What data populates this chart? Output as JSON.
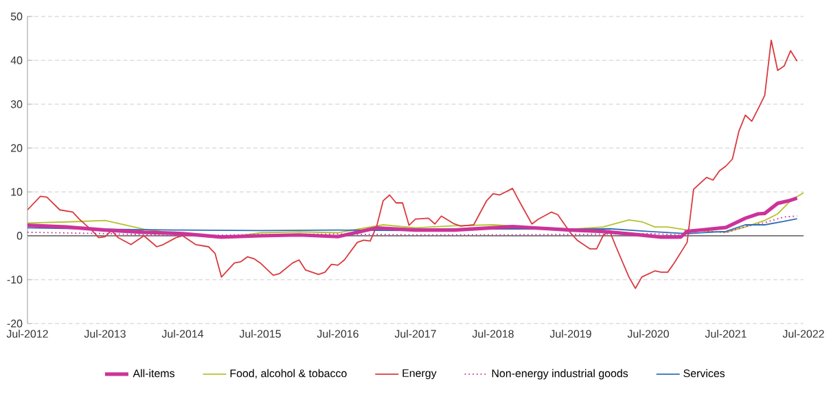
{
  "chart_data": {
    "type": "line",
    "legend": "bottom",
    "grid": "y",
    "xlim": [
      "2012-07",
      "2022-07"
    ],
    "ylim": [
      -20,
      50
    ],
    "yticks": [
      -20,
      -10,
      0,
      10,
      20,
      30,
      40,
      50
    ],
    "xticks": [
      {
        "value": "2012-07",
        "label": "Jul-2012"
      },
      {
        "value": "2013-07",
        "label": "Jul-2013"
      },
      {
        "value": "2014-07",
        "label": "Jul-2014"
      },
      {
        "value": "2015-07",
        "label": "Jul-2015"
      },
      {
        "value": "2016-07",
        "label": "Jul-2016"
      },
      {
        "value": "2017-07",
        "label": "Jul-2017"
      },
      {
        "value": "2018-07",
        "label": "Jul-2018"
      },
      {
        "value": "2019-07",
        "label": "Jul-2019"
      },
      {
        "value": "2020-07",
        "label": "Jul-2020"
      },
      {
        "value": "2021-07",
        "label": "Jul-2021"
      },
      {
        "value": "2022-07",
        "label": "Jul-2022"
      }
    ],
    "series": [
      {
        "name": "All-items",
        "color": "#cc3399",
        "line_style": "solid",
        "x": [
          "2012-07",
          "2013-01",
          "2013-07",
          "2014-01",
          "2014-07",
          "2015-01",
          "2015-07",
          "2016-01",
          "2016-07",
          "2017-01",
          "2017-07",
          "2018-01",
          "2018-10",
          "2019-07",
          "2019-12",
          "2020-05",
          "2020-09",
          "2020-12",
          "2021-01",
          "2021-07",
          "2021-10",
          "2021-12",
          "2022-01",
          "2022-03",
          "2022-05",
          "2022-06"
        ],
        "values": [
          2.4,
          2.0,
          1.3,
          0.8,
          0.5,
          -0.3,
          0.0,
          0.2,
          -0.2,
          1.8,
          1.3,
          1.3,
          2.1,
          1.3,
          1.0,
          0.3,
          -0.3,
          -0.3,
          1.0,
          1.9,
          4.0,
          5.0,
          5.1,
          7.4,
          8.1,
          8.6
        ]
      },
      {
        "name": "Food, alcohol & tobacco",
        "color": "#b5c22e",
        "line_style": "solid",
        "x": [
          "2012-07",
          "2013-02",
          "2013-07",
          "2014-01",
          "2014-07",
          "2015-01",
          "2015-07",
          "2016-01",
          "2016-07",
          "2017-02",
          "2017-07",
          "2018-01",
          "2018-07",
          "2019-07",
          "2019-12",
          "2020-04",
          "2020-06",
          "2020-08",
          "2020-10",
          "2021-01",
          "2021-07",
          "2021-10",
          "2022-01",
          "2022-03",
          "2022-05",
          "2022-07"
        ],
        "values": [
          2.9,
          3.2,
          3.5,
          1.5,
          0.3,
          -0.5,
          0.7,
          0.9,
          0.7,
          2.5,
          1.8,
          2.3,
          2.5,
          1.5,
          2.0,
          3.6,
          3.2,
          2.0,
          2.0,
          1.3,
          0.8,
          2.0,
          3.5,
          5.0,
          8.0,
          9.8
        ]
      },
      {
        "name": "Energy",
        "color": "#d9393e",
        "line_style": "solid",
        "x": [
          "2012-07",
          "2012-09",
          "2012-10",
          "2012-12",
          "2013-02",
          "2013-03",
          "2013-05",
          "2013-06",
          "2013-07",
          "2013-08",
          "2013-09",
          "2013-11",
          "2014-01",
          "2014-03",
          "2014-04",
          "2014-06",
          "2014-07",
          "2014-09",
          "2014-11",
          "2014-12",
          "2015-01",
          "2015-03",
          "2015-04",
          "2015-05",
          "2015-06",
          "2015-07",
          "2015-09",
          "2015-10",
          "2015-12",
          "2016-01",
          "2016-02",
          "2016-04",
          "2016-05",
          "2016-06",
          "2016-07",
          "2016-08",
          "2016-10",
          "2016-11",
          "2016-12",
          "2017-01",
          "2017-02",
          "2017-03",
          "2017-04",
          "2017-05",
          "2017-06",
          "2017-07",
          "2017-09",
          "2017-10",
          "2017-11",
          "2018-01",
          "2018-02",
          "2018-04",
          "2018-06",
          "2018-07",
          "2018-08",
          "2018-10",
          "2018-11",
          "2019-01",
          "2019-02",
          "2019-04",
          "2019-05",
          "2019-06",
          "2019-07",
          "2019-08",
          "2019-10",
          "2019-11",
          "2019-12",
          "2020-01",
          "2020-02",
          "2020-04",
          "2020-05",
          "2020-06",
          "2020-08",
          "2020-09",
          "2020-10",
          "2020-11",
          "2021-01",
          "2021-02",
          "2021-04",
          "2021-05",
          "2021-06",
          "2021-07",
          "2021-08",
          "2021-09",
          "2021-10",
          "2021-11",
          "2021-12",
          "2022-01",
          "2022-02",
          "2022-03",
          "2022-04",
          "2022-05",
          "2022-06"
        ],
        "values": [
          5.9,
          9.0,
          8.8,
          5.9,
          5.4,
          3.8,
          1.2,
          -0.4,
          -0.2,
          1.2,
          -0.4,
          -2.0,
          0.0,
          -2.5,
          -2.0,
          -0.4,
          0.0,
          -2.0,
          -2.5,
          -4.0,
          -9.4,
          -6.2,
          -5.9,
          -4.8,
          -5.2,
          -6.2,
          -9.0,
          -8.6,
          -6.2,
          -5.5,
          -7.8,
          -8.8,
          -8.3,
          -6.5,
          -6.7,
          -5.5,
          -1.5,
          -1.0,
          -1.2,
          2.2,
          8.0,
          9.3,
          7.5,
          7.5,
          2.4,
          3.8,
          4.0,
          2.7,
          4.5,
          2.7,
          2.2,
          2.5,
          8.0,
          9.6,
          9.3,
          10.8,
          8.0,
          2.7,
          3.8,
          5.4,
          4.8,
          2.7,
          0.6,
          -1.0,
          -3.0,
          -3.0,
          0.0,
          1.2,
          -2.5,
          -9.4,
          -12.0,
          -9.4,
          -8.0,
          -8.3,
          -8.3,
          -6.2,
          -1.5,
          10.6,
          13.3,
          12.7,
          14.8,
          15.9,
          17.5,
          23.8,
          27.5,
          26.1,
          29.0,
          32.0,
          44.6,
          37.7,
          38.7,
          42.2,
          39.8
        ]
      },
      {
        "name": "Non-energy industrial goods",
        "color": "#cc3399",
        "line_style": "dotted",
        "x": [
          "2012-07",
          "2013-07",
          "2014-07",
          "2015-07",
          "2016-07",
          "2017-07",
          "2018-07",
          "2019-07",
          "2020-07",
          "2020-12",
          "2021-01",
          "2021-07",
          "2021-10",
          "2022-01",
          "2022-04",
          "2022-06"
        ],
        "values": [
          0.8,
          0.5,
          0.0,
          0.3,
          0.4,
          0.2,
          0.2,
          0.3,
          0.5,
          0.2,
          1.5,
          0.7,
          2.1,
          3.0,
          4.3,
          4.5
        ]
      },
      {
        "name": "Services",
        "color": "#2e6db4",
        "line_style": "solid",
        "x": [
          "2012-07",
          "2013-07",
          "2014-07",
          "2015-07",
          "2016-07",
          "2017-07",
          "2018-07",
          "2019-07",
          "2020-01",
          "2020-07",
          "2021-01",
          "2021-07",
          "2021-10",
          "2022-01",
          "2022-04",
          "2022-06"
        ],
        "values": [
          1.8,
          1.5,
          1.3,
          1.2,
          1.3,
          1.2,
          1.6,
          1.5,
          1.6,
          1.0,
          0.5,
          1.0,
          2.5,
          2.5,
          3.3,
          3.9
        ]
      }
    ]
  }
}
